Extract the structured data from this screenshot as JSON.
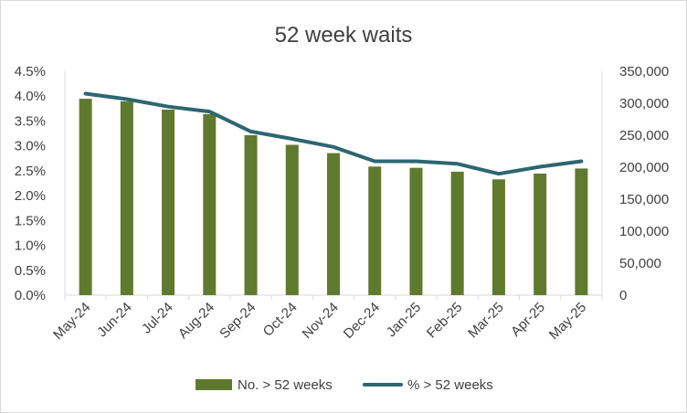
{
  "chart_data": {
    "type": "bar+line",
    "title": "52 week waits",
    "categories": [
      "May-24",
      "Jun-24",
      "Jul-24",
      "Aug-24",
      "Sep-24",
      "Oct-24",
      "Nov-24",
      "Dec-24",
      "Jan-25",
      "Feb-25",
      "Mar-25",
      "Apr-25",
      "May-25"
    ],
    "series": [
      {
        "name": "No. > 52 weeks",
        "type": "bar",
        "axis": "right",
        "color": "#5f7a2e",
        "values": [
          307000,
          303000,
          290000,
          283000,
          250000,
          235000,
          222000,
          201000,
          199000,
          193000,
          181000,
          190000,
          198000
        ]
      },
      {
        "name": "% > 52 weeks",
        "type": "line",
        "axis": "left",
        "color": "#2e6670",
        "values": [
          0.0405,
          0.0394,
          0.0379,
          0.0369,
          0.0329,
          0.0314,
          0.0298,
          0.0269,
          0.0269,
          0.0264,
          0.0244,
          0.0258,
          0.0269
        ]
      }
    ],
    "y_left": {
      "ylim": [
        0,
        0.045
      ],
      "ticks": [
        0,
        0.005,
        0.01,
        0.015,
        0.02,
        0.025,
        0.03,
        0.035,
        0.04,
        0.045
      ],
      "tick_labels": [
        "0.0%",
        "0.5%",
        "1.0%",
        "1.5%",
        "2.0%",
        "2.5%",
        "3.0%",
        "3.5%",
        "4.0%",
        "4.5%"
      ]
    },
    "y_right": {
      "ylim": [
        0,
        350000
      ],
      "ticks": [
        0,
        50000,
        100000,
        150000,
        200000,
        250000,
        300000,
        350000
      ],
      "tick_labels": [
        "0",
        "50,000",
        "100,000",
        "150,000",
        "200,000",
        "250,000",
        "300,000",
        "350,000"
      ]
    },
    "grid": false,
    "legend_position": "bottom"
  }
}
